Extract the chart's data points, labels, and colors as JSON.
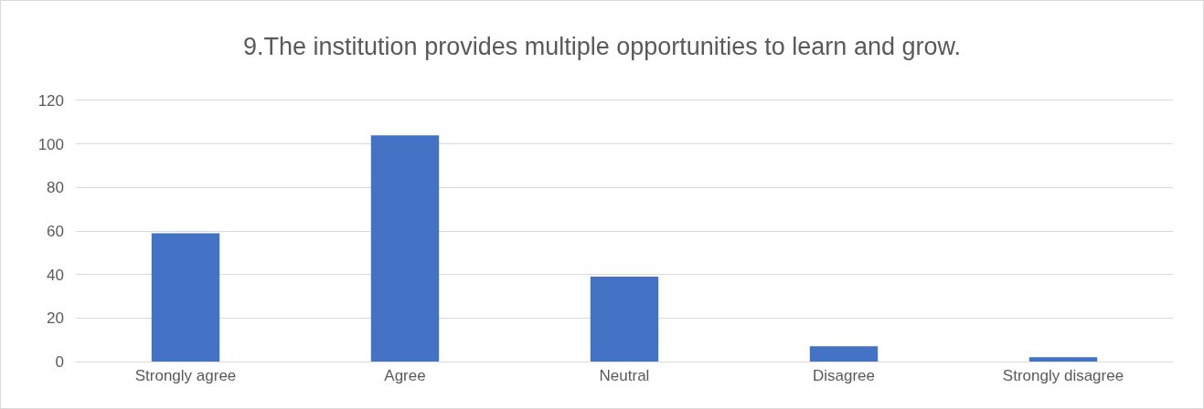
{
  "chart_data": {
    "type": "bar",
    "title": "9.The institution provides multiple opportunities to learn and grow.",
    "categories": [
      "Strongly agree",
      "Agree",
      "Neutral",
      "Disagree",
      "Strongly disagree"
    ],
    "values": [
      59,
      104,
      39,
      7,
      2
    ],
    "color": "#4472c4",
    "ylim": [
      0,
      120
    ],
    "yticks": [
      0,
      20,
      40,
      60,
      80,
      100,
      120
    ],
    "grid": "y"
  }
}
